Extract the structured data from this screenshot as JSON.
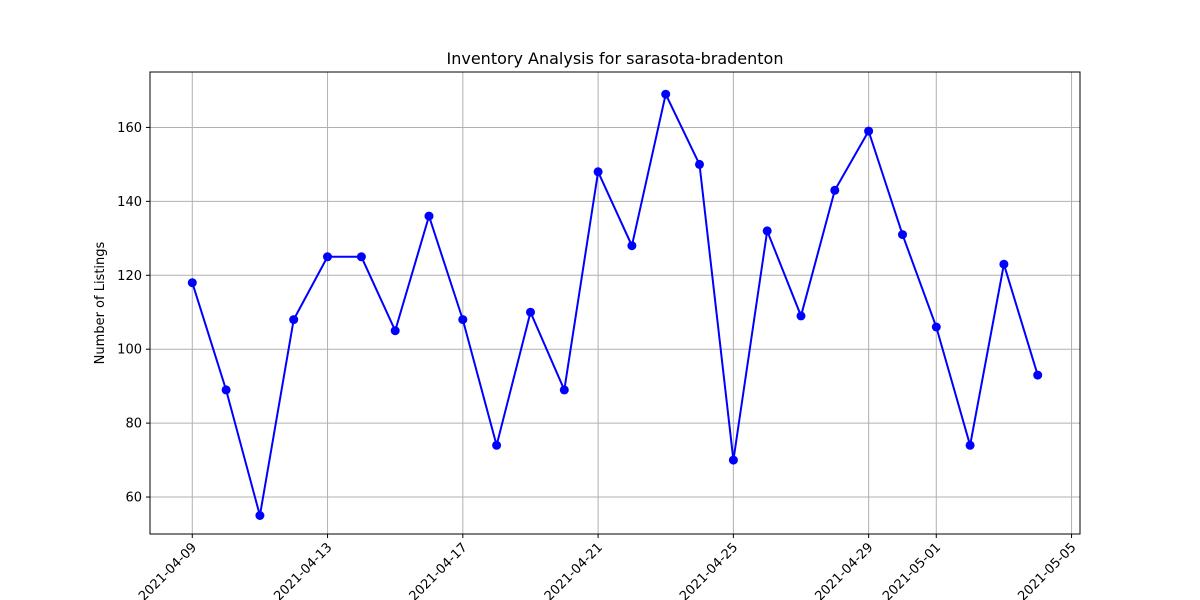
{
  "chart_data": {
    "type": "line",
    "title": "Inventory Analysis for sarasota-bradenton",
    "xlabel": "",
    "ylabel": "Number of Listings",
    "xlim": [
      "2021-04-07 18:00",
      "2021-05-05 06:00"
    ],
    "ylim": [
      50,
      175
    ],
    "grid": true,
    "line_color": "#0000ff",
    "marker": "circle",
    "x_ticks": [
      "2021-04-09",
      "2021-04-13",
      "2021-04-17",
      "2021-04-21",
      "2021-04-25",
      "2021-04-29",
      "2021-05-01",
      "2021-05-05"
    ],
    "y_ticks": [
      60,
      80,
      100,
      120,
      140,
      160
    ],
    "x": [
      "2021-04-09",
      "2021-04-10",
      "2021-04-11",
      "2021-04-12",
      "2021-04-13",
      "2021-04-14",
      "2021-04-15",
      "2021-04-16",
      "2021-04-17",
      "2021-04-18",
      "2021-04-19",
      "2021-04-20",
      "2021-04-21",
      "2021-04-22",
      "2021-04-23",
      "2021-04-24",
      "2021-04-25",
      "2021-04-26",
      "2021-04-27",
      "2021-04-28",
      "2021-04-29",
      "2021-04-30",
      "2021-05-01",
      "2021-05-02",
      "2021-05-03",
      "2021-05-04"
    ],
    "y": [
      118,
      89,
      55,
      108,
      125,
      125,
      105,
      136,
      108,
      74,
      110,
      89,
      148,
      128,
      169,
      150,
      70,
      132,
      109,
      143,
      159,
      131,
      106,
      74,
      123,
      93
    ]
  }
}
